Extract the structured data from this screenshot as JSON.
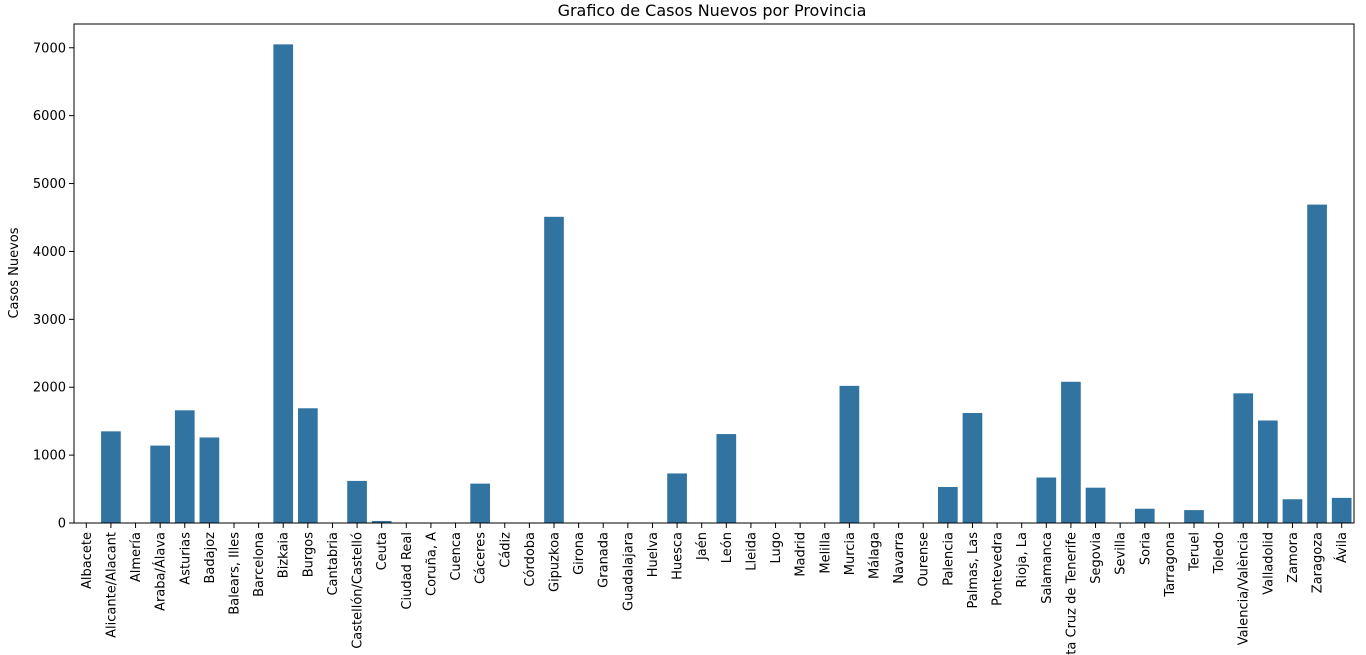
{
  "chart_data": {
    "type": "bar",
    "title": "Grafico de Casos Nuevos por Provincia",
    "xlabel": "",
    "ylabel": "Casos Nuevos",
    "ylim": [
      0,
      7350
    ],
    "yticks": [
      0,
      1000,
      2000,
      3000,
      4000,
      5000,
      6000,
      7000
    ],
    "grid": false,
    "bar_color": "#3274a1",
    "categories": [
      "Albacete",
      "Alicante/Alacant",
      "Almería",
      "Araba/Álava",
      "Asturias",
      "Badajoz",
      "Balears, Illes",
      "Barcelona",
      "Bizkaia",
      "Burgos",
      "Cantabria",
      "Castellón/Castelló",
      "Ceuta",
      "Ciudad Real",
      "Coruña, A",
      "Cuenca",
      "Cáceres",
      "Cádiz",
      "Córdoba",
      "Gipuzkoa",
      "Girona",
      "Granada",
      "Guadalajara",
      "Huelva",
      "Huesca",
      "Jaén",
      "León",
      "Lleida",
      "Lugo",
      "Madrid",
      "Melilla",
      "Murcia",
      "Málaga",
      "Navarra",
      "Ourense",
      "Palencia",
      "Palmas, Las",
      "Pontevedra",
      "Rioja, La",
      "Salamanca",
      "Santa Cruz de Tenerife",
      "Segovia",
      "Sevilla",
      "Soria",
      "Tarragona",
      "Teruel",
      "Toledo",
      "Valencia/València",
      "Valladolid",
      "Zamora",
      "Zaragoza",
      "Ávila"
    ],
    "values": [
      0,
      1350,
      0,
      1140,
      1660,
      1260,
      0,
      0,
      7050,
      1690,
      0,
      620,
      30,
      0,
      0,
      0,
      580,
      0,
      0,
      4510,
      0,
      0,
      0,
      0,
      730,
      0,
      1310,
      0,
      0,
      0,
      0,
      2020,
      0,
      0,
      0,
      530,
      1620,
      0,
      0,
      670,
      2080,
      520,
      0,
      210,
      0,
      190,
      0,
      1910,
      1510,
      350,
      4690,
      370
    ]
  }
}
